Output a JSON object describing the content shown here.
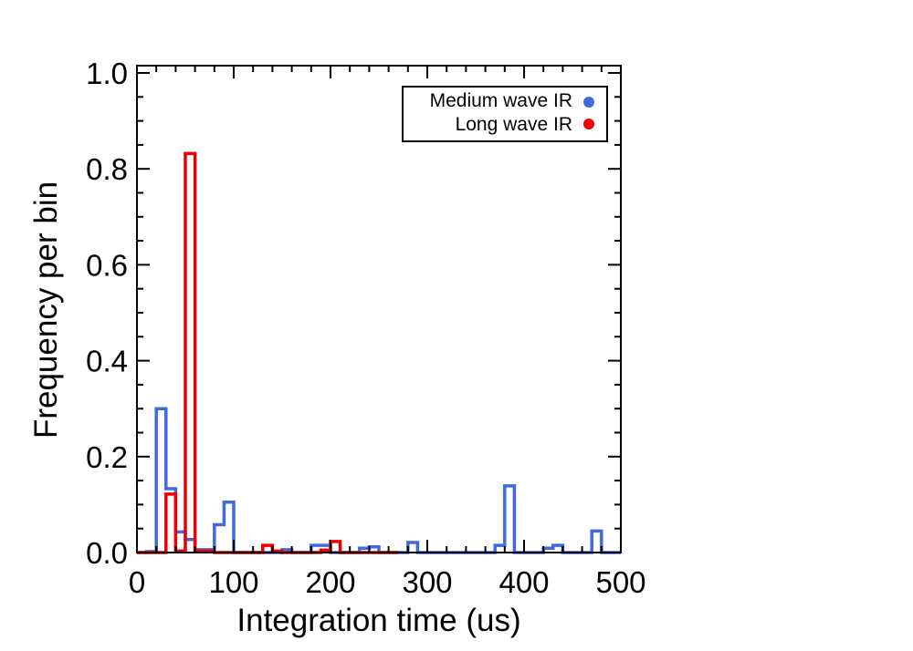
{
  "chart_data": {
    "type": "histogram",
    "xlabel": "Integration time (us)",
    "ylabel": "Frequency per bin",
    "xlim": [
      0,
      500
    ],
    "ylim": [
      0,
      1.0
    ],
    "bin_width": 10,
    "x_ticks": [
      "0",
      "100",
      "200",
      "300",
      "400",
      "500"
    ],
    "y_ticks": [
      "0.0",
      "0.2",
      "0.4",
      "0.6",
      "0.8",
      "1.0"
    ],
    "grid": false,
    "legend_position": "top-right",
    "series": [
      {
        "name": "Medium wave IR",
        "color": "#4169e1",
        "bins_x": [
          0,
          10,
          20,
          30,
          40,
          50,
          60,
          70,
          80,
          90,
          100,
          110,
          120,
          130,
          140,
          150,
          160,
          170,
          180,
          190,
          200,
          210,
          220,
          230,
          240,
          250,
          260,
          270,
          280,
          290,
          300,
          310,
          320,
          330,
          340,
          350,
          360,
          370,
          380,
          390,
          400,
          410,
          420,
          430,
          440,
          450,
          460,
          470,
          480,
          490
        ],
        "values": [
          0,
          0.002,
          0.3,
          0.133,
          0.043,
          0.027,
          0.006,
          0.006,
          0.058,
          0.105,
          0,
          0,
          0,
          0,
          0,
          0.006,
          0,
          0,
          0.015,
          0.015,
          0,
          0,
          0,
          0.009,
          0.012,
          0,
          0,
          0,
          0.021,
          0,
          0,
          0,
          0,
          0,
          0,
          0,
          0,
          0.015,
          0.139,
          0,
          0,
          0,
          0.009,
          0.015,
          0,
          0,
          0,
          0.045,
          0,
          0
        ]
      },
      {
        "name": "Long wave IR",
        "color": "#ee0000",
        "bins_x": [
          0,
          10,
          20,
          30,
          40,
          50,
          60,
          70,
          80,
          90,
          100,
          110,
          120,
          130,
          140,
          150,
          160,
          170,
          180,
          190,
          200,
          210,
          220,
          230,
          240,
          250,
          260
        ],
        "values": [
          0,
          0,
          0,
          0.122,
          0.003,
          0.832,
          0.003,
          0.003,
          0,
          0,
          0,
          0,
          0,
          0.015,
          0.003,
          0,
          0,
          0,
          0,
          0.005,
          0.023,
          0,
          0,
          0,
          0,
          0,
          0
        ]
      }
    ]
  }
}
